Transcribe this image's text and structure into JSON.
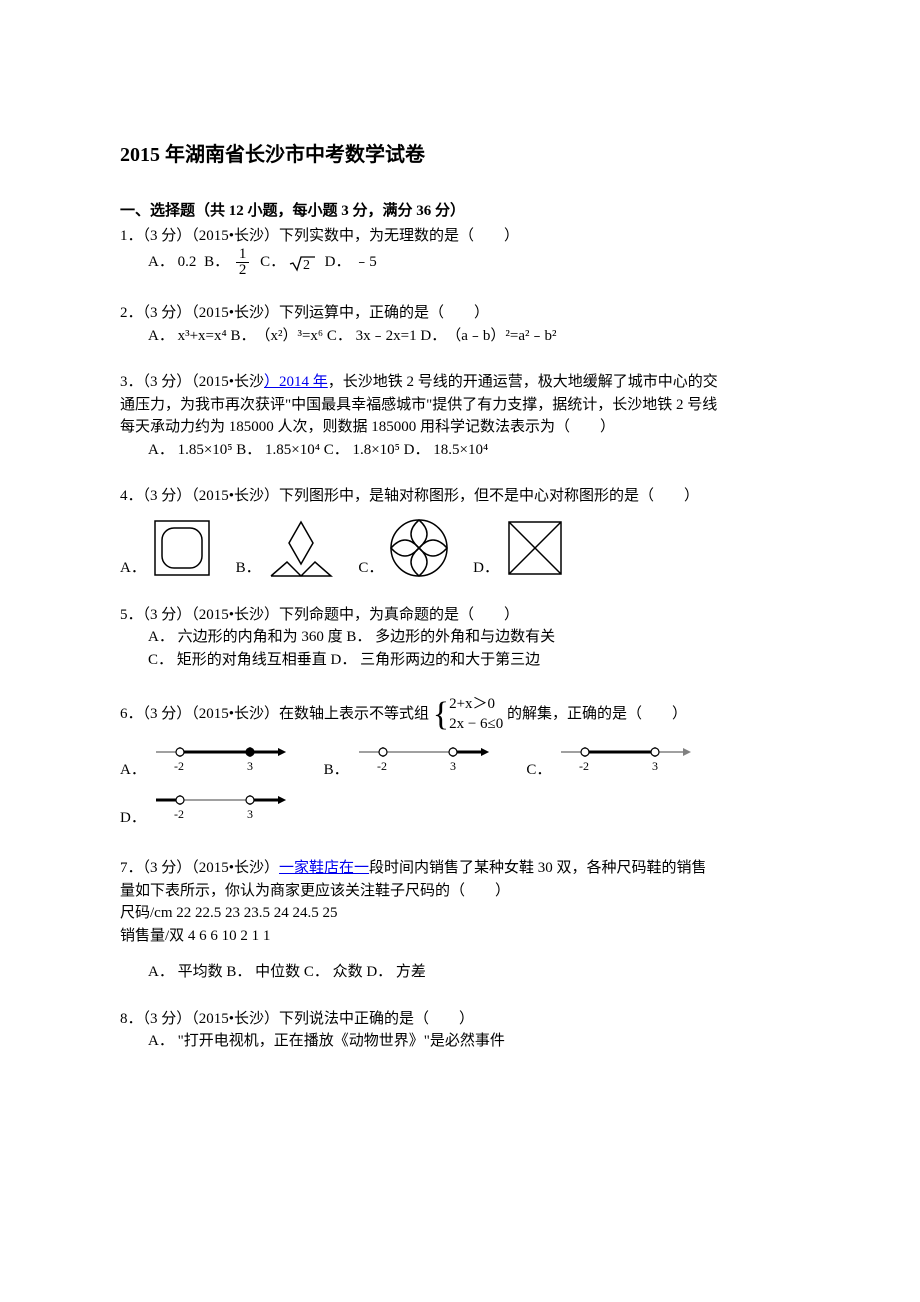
{
  "title": "2015 年湖南省长沙市中考数学试卷",
  "section1_header": "一、选择题（共 12 小题，每小题 3 分，满分 36 分）",
  "q1": {
    "stem": "1．（3 分）（2015•长沙）下列实数中，为无理数的是（　　）",
    "optA_prefix": "A．",
    "optA_val": "0.2",
    "optB_prefix": "B．",
    "optB_num": "1",
    "optB_den": "2",
    "optC_prefix": "C．",
    "optC_val": "2",
    "optD_prefix": "D．",
    "optD_val": "﹣5"
  },
  "q2": {
    "stem": "2．（3 分）（2015•长沙）下列运算中，正确的是（　　）",
    "options": "A．  x³+x=x⁴ B．　（x²）³=x⁶ C．  3x﹣2x=1 D．　（a﹣b）²=a²﹣b²"
  },
  "q3": {
    "line1_a": "3．（3 分）（2015•长沙",
    "line1_link": "）2014 年",
    "line1_b": "，长沙地铁 2 号线的开通运营，极大地缓解了城市中心的交",
    "line2": "通压力，为我市再次获评\"中国最具幸福感城市\"提供了有力支撑，据统计，长沙地铁 2 号线",
    "line3": "每天承动力约为 185000 人次，则数据 185000 用科学记数法表示为（　　）",
    "options": "A．  1.85×10⁵ B．  1.85×10⁴ C．  1.8×10⁵ D．  18.5×10⁴"
  },
  "q4": {
    "stem": "4．（3 分）（2015•长沙）下列图形中，是轴对称图形，但不是中心对称图形的是（　　）",
    "A": "A．",
    "B": "B．",
    "C": "C．",
    "D": "D．",
    "shapes": {
      "stroke": "#000000",
      "fill": "none",
      "strokeWidth": 1.5,
      "size": 60
    }
  },
  "q5": {
    "stem": "5．（3 分）（2015•长沙）下列命题中，为真命题的是（　　）",
    "line1": "A．  六边形的内角和为 360 度  B．  多边形的外角和与边数有关",
    "line2": "C．  矩形的对角线互相垂直  D．  三角形两边的和大于第三边"
  },
  "q6": {
    "stem_a": "6．（3 分）（2015•长沙）在数轴上表示不等式组",
    "sys_line1": "2+x＞0",
    "sys_line2": "2x − 6≤0",
    "stem_b": "的解集，正确的是（　　）",
    "A": "A．",
    "B": "B．",
    "C": "C．",
    "D": "D．",
    "ticks": {
      "left": "-2",
      "right": "3"
    },
    "nl": {
      "width": 140,
      "height": 36,
      "lineColor": "#808080",
      "tickColor": "#000000",
      "labelSize": 12
    }
  },
  "q7": {
    "line1_a": "7．（3 分）（2015•长沙）",
    "line1_link": "一家鞋店在一",
    "line1_b": "段时间内销售了某种女鞋 30 双，各种尺码鞋的销售",
    "line2": "量如下表所示，你认为商家更应该关注鞋子尺码的（　　）",
    "table_row1": "尺码/cm 22 22.5 23 23.5 24 24.5 25",
    "table_row2": "销售量/双  4 6 6 10 2 1 1",
    "options": "A．  平均数  B．  中位数  C．  众数  D．  方差"
  },
  "q8": {
    "stem": "8．（3 分）（2015•长沙）下列说法中正确的是（　　）",
    "optA": "A．  \"打开电视机，正在播放《动物世界》\"是必然事件"
  }
}
